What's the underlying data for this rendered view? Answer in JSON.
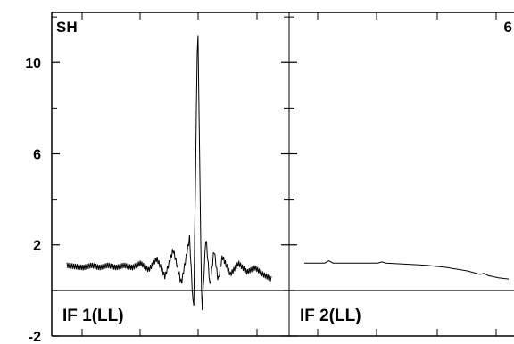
{
  "chart_data": {
    "type": "line",
    "corner_label": "SH",
    "corner_number": "6",
    "y_ticks": [
      {
        "value": 10,
        "label": "10"
      },
      {
        "value": 6,
        "label": "6"
      },
      {
        "value": 2,
        "label": "2"
      },
      {
        "value": -2,
        "label": "-2"
      }
    ],
    "ylim": [
      -2,
      12.2
    ],
    "grid": false,
    "line_color": "#000000",
    "panels": [
      {
        "label": "IF 1(LL)",
        "signal": "fringe",
        "x": [
          0,
          0.04,
          0.08,
          0.12,
          0.16,
          0.2,
          0.24,
          0.28,
          0.32,
          0.36,
          0.4,
          0.44,
          0.48,
          0.52,
          0.56,
          0.6,
          0.62,
          0.64,
          0.66,
          0.68,
          0.7,
          0.72,
          0.74,
          0.76,
          0.8,
          0.84,
          0.88,
          0.92,
          0.96,
          1.0
        ],
        "y": [
          1.1,
          1.05,
          1.0,
          1.1,
          1.0,
          1.1,
          1.0,
          1.1,
          1.0,
          1.2,
          0.9,
          1.4,
          0.6,
          1.8,
          0.3,
          2.3,
          -1.1,
          12.2,
          -1.2,
          2.4,
          0.2,
          1.8,
          0.4,
          1.5,
          0.7,
          1.2,
          0.8,
          1.0,
          0.7,
          0.5
        ]
      },
      {
        "label": "IF 2(LL)",
        "signal": "smooth",
        "x": [
          0,
          0.1,
          0.12,
          0.14,
          0.2,
          0.3,
          0.36,
          0.38,
          0.4,
          0.5,
          0.6,
          0.7,
          0.8,
          0.86,
          0.88,
          0.9,
          0.95,
          1.0
        ],
        "y": [
          1.2,
          1.2,
          1.3,
          1.2,
          1.2,
          1.2,
          1.2,
          1.25,
          1.2,
          1.15,
          1.1,
          1.0,
          0.85,
          0.7,
          0.75,
          0.65,
          0.55,
          0.5
        ]
      }
    ]
  }
}
